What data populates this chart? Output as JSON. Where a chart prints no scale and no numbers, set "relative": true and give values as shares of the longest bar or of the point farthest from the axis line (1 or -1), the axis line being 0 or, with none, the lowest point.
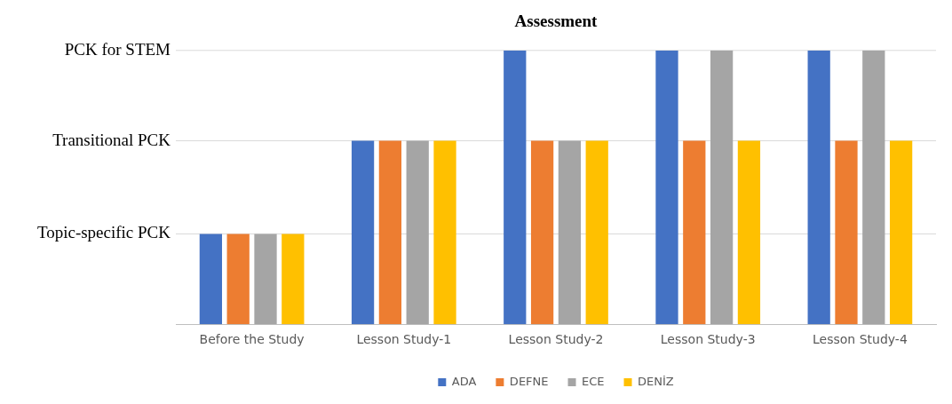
{
  "chart_data": {
    "type": "bar",
    "title": "Assessment",
    "relative": true,
    "categories": [
      "Before the Study",
      "Lesson Study-1",
      "Lesson Study-2",
      "Lesson Study-3",
      "Lesson Study-4"
    ],
    "series": [
      {
        "name": "ADA",
        "color": "#4472c4",
        "values": [
          0.33,
          0.67,
          1,
          1,
          1
        ]
      },
      {
        "name": "DEFNE",
        "color": "#ed7d31",
        "values": [
          0.33,
          0.67,
          0.67,
          0.67,
          0.67
        ]
      },
      {
        "name": "ECE",
        "color": "#a5a5a5",
        "values": [
          0.33,
          0.67,
          0.67,
          1,
          1
        ]
      },
      {
        "name": "DENİZ",
        "color": "#ffc000",
        "values": [
          0.33,
          0.67,
          0.67,
          0.67,
          0.67
        ]
      }
    ],
    "ref_lines": [
      {
        "axis": "y",
        "value": 0.33,
        "label": "Topic-specific PCK",
        "color": "#d9d9d9"
      },
      {
        "axis": "y",
        "value": 0.67,
        "label": "Transitional PCK",
        "color": "#d9d9d9"
      },
      {
        "axis": "y",
        "value": 1,
        "label": "PCK for STEM",
        "color": "#d9d9d9"
      }
    ],
    "legend": "bottom"
  }
}
